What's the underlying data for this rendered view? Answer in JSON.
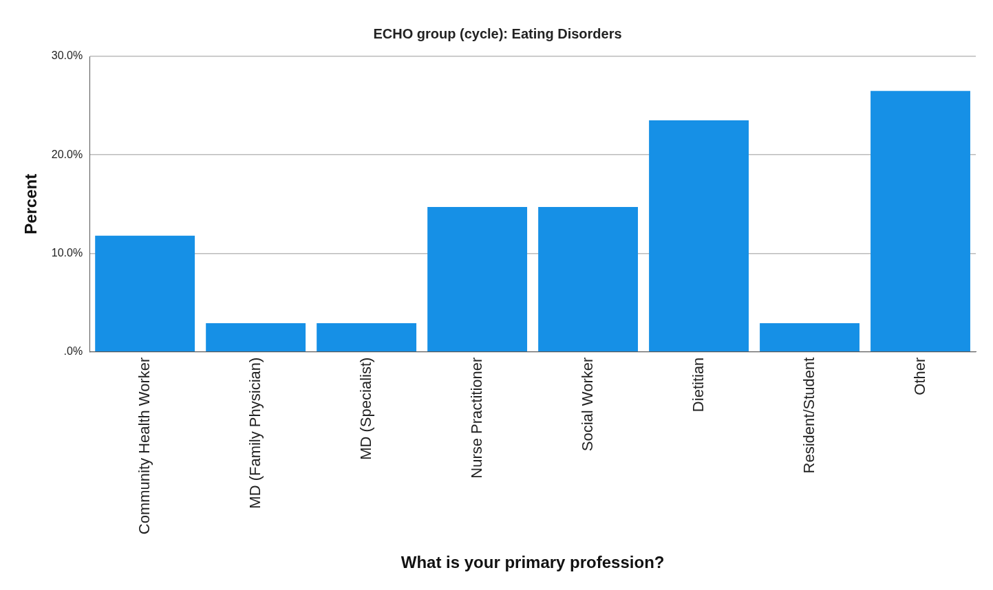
{
  "chart_data": {
    "type": "bar",
    "title": "ECHO group (cycle): Eating Disorders",
    "xlabel": "What is your primary profession?",
    "ylabel": "Percent",
    "categories": [
      "Community Health Worker",
      "MD (Family Physician)",
      "MD (Specialist)",
      "Nurse Practitioner",
      "Social Worker",
      "Dietitian",
      "Resident/Student",
      "Other"
    ],
    "values": [
      11.8,
      2.9,
      2.9,
      14.7,
      14.7,
      23.5,
      2.9,
      26.5
    ],
    "color": "#1690e6",
    "ylim": [
      0,
      30
    ],
    "yticks": [
      {
        "value": 0,
        "label": ".0%"
      },
      {
        "value": 10,
        "label": "10.0%"
      },
      {
        "value": 20,
        "label": "20.0%"
      },
      {
        "value": 30,
        "label": "30.0%"
      }
    ],
    "grid": "y"
  }
}
